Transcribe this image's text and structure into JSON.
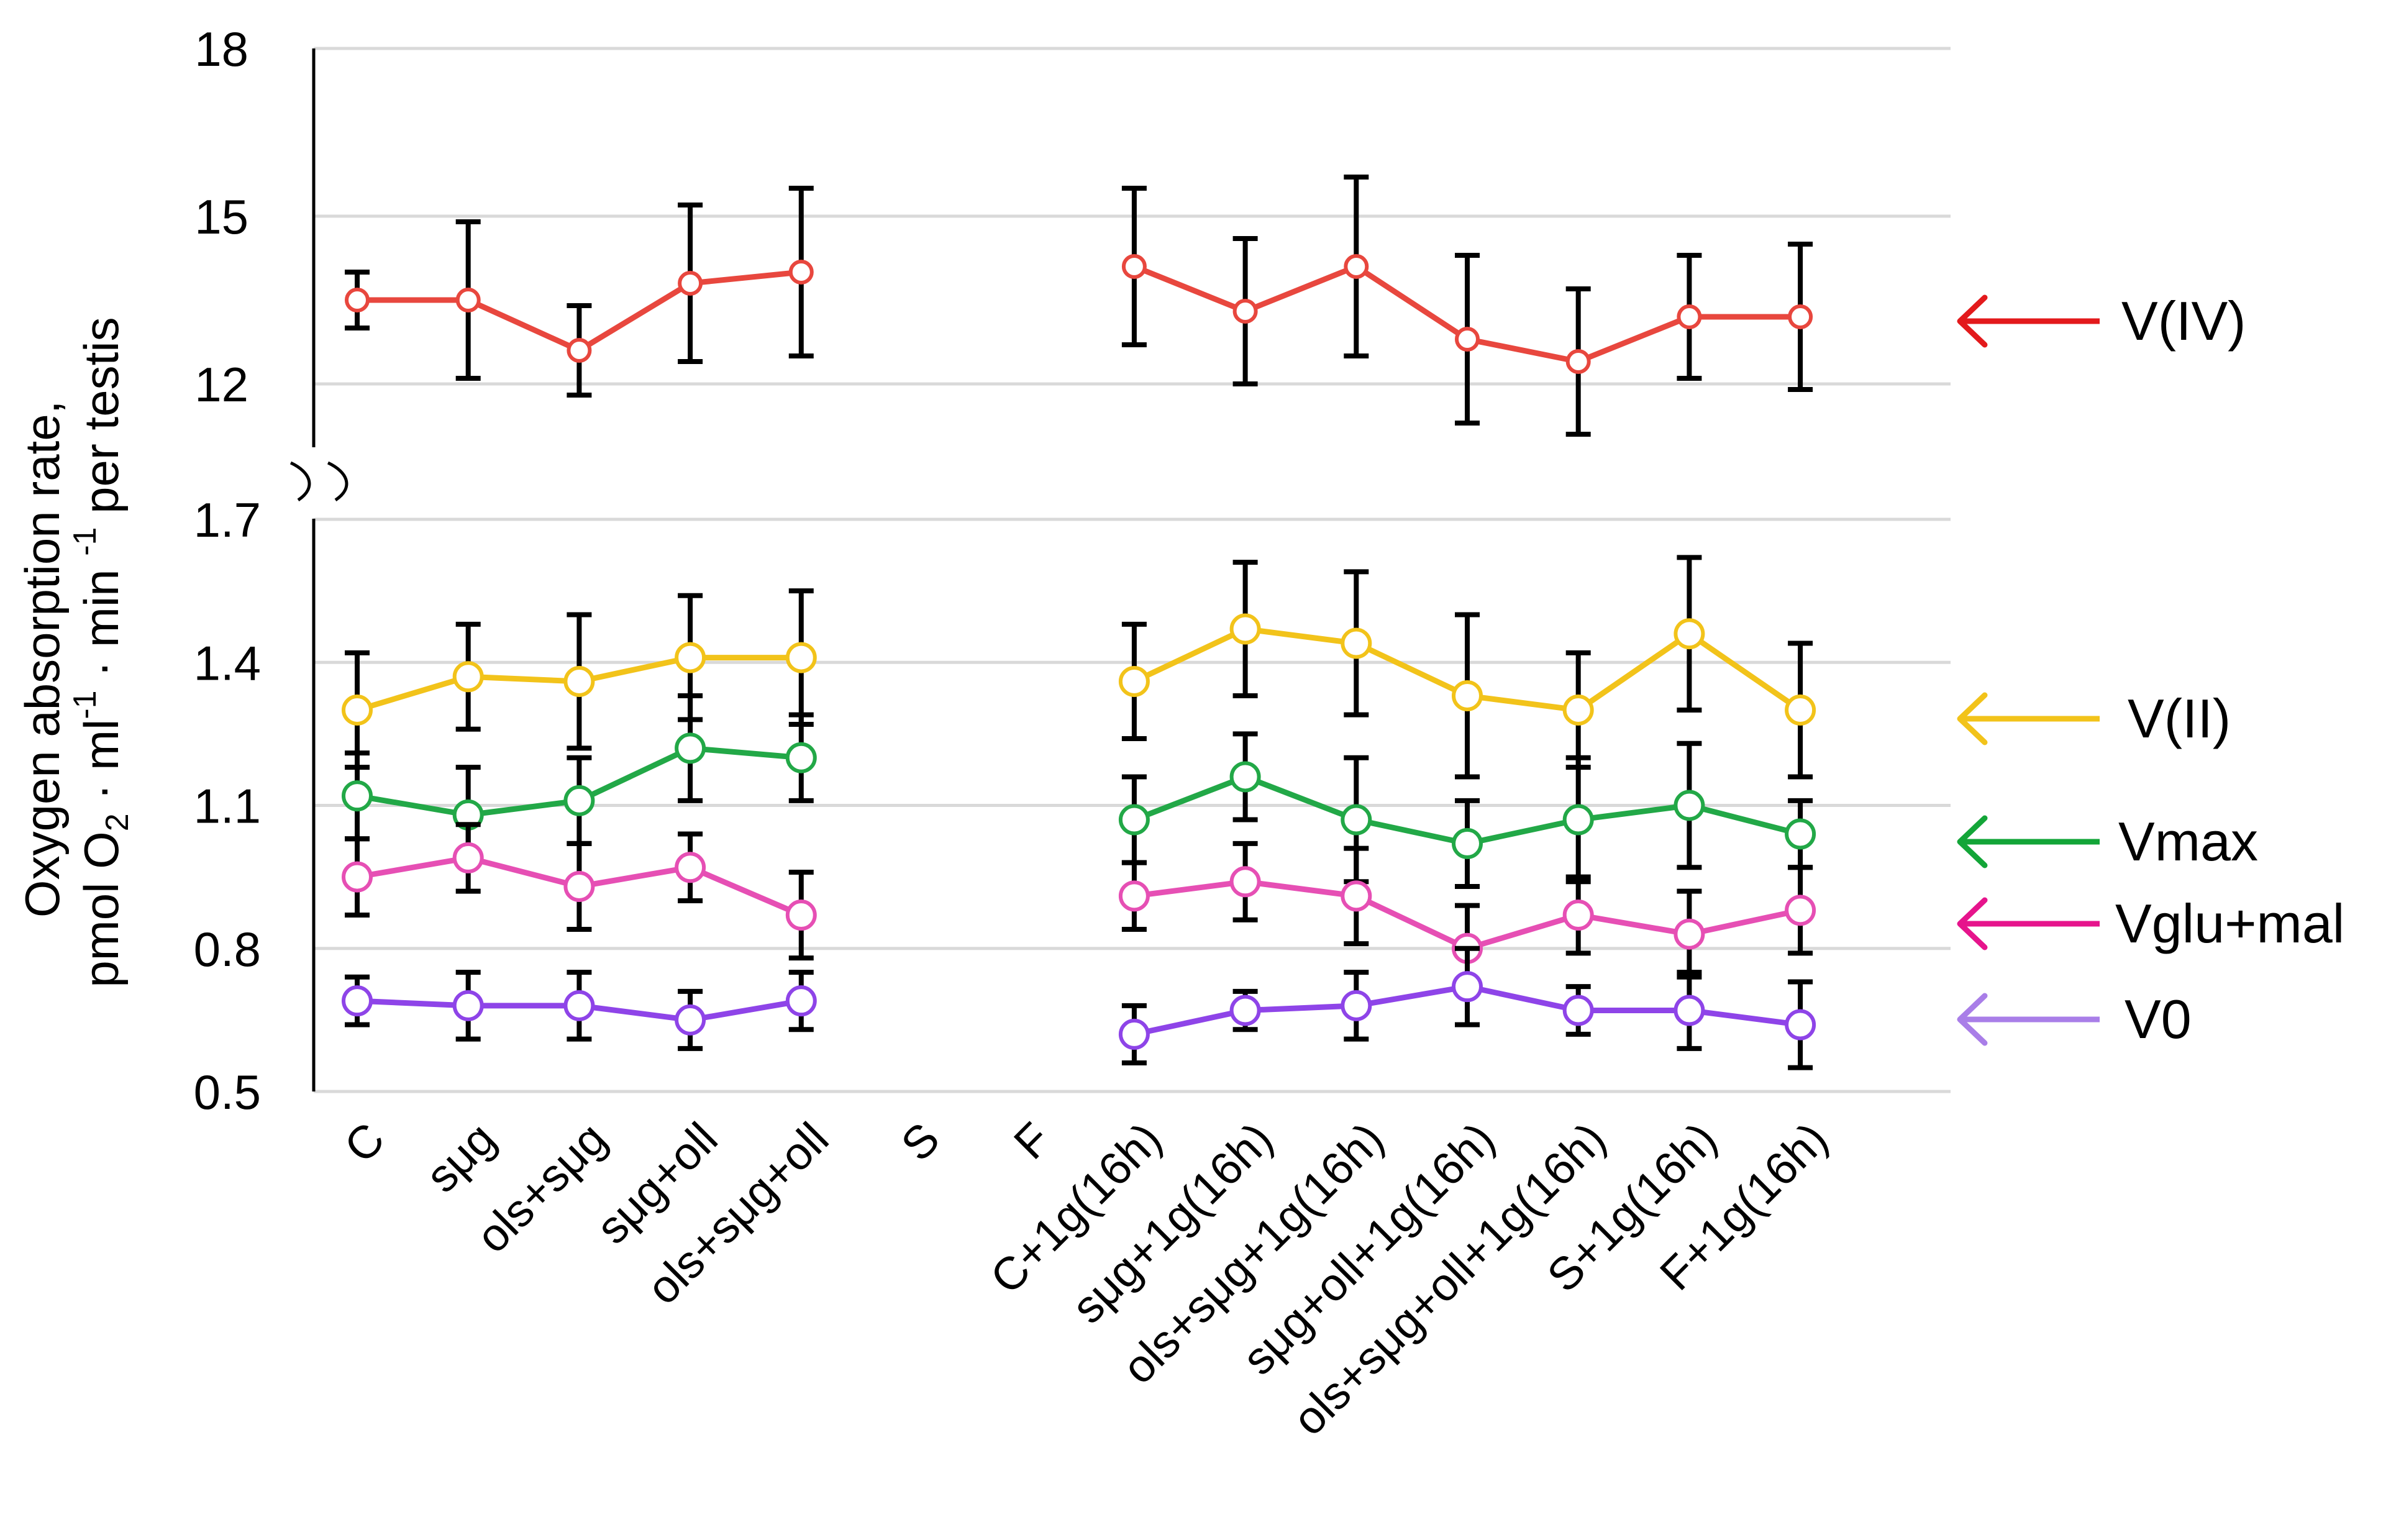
{
  "chart_data": {
    "type": "line",
    "title": "",
    "ylabel_line1": "Oxygen absorption rate,",
    "ylabel_line2": {
      "t1": "pmol O",
      "sub": "2",
      "t2": " · ml",
      "sup1": "-1",
      "t3": " · min ",
      "sup2": "-1",
      "t4": " per testis"
    },
    "categories": [
      "C",
      "sμg",
      "ols+sμg",
      "sμg+oll",
      "ols+sμg+oll",
      "S",
      "F",
      "C+1g(16h)",
      "sμg+1g(16h)",
      "ols+sμg+1g(16h)",
      "sμg+oll+1g(16h)",
      "ols+sμg+oll+1g(16h)",
      "S+1g(16h)",
      "F+1g(16h)"
    ],
    "upper_axis": {
      "ylim": [
        10.2,
        18
      ],
      "ticks": [
        "12",
        "15",
        "18"
      ],
      "tick_values": [
        12,
        15,
        18
      ]
    },
    "lower_axis": {
      "ylim": [
        0.5,
        1.7
      ],
      "ticks": [
        "0.5",
        "0.8",
        "1.1",
        "1.4",
        "1.7"
      ],
      "tick_values": [
        0.5,
        0.8,
        1.1,
        1.4,
        1.7
      ]
    },
    "series": [
      {
        "name": "V(IV)",
        "axis": "upper",
        "color": "#e8473e",
        "arrow_color": "#e31a1c",
        "values": [
          13.5,
          13.5,
          12.6,
          13.8,
          14.0,
          null,
          null,
          14.1,
          13.3,
          14.1,
          12.8,
          12.4,
          13.2,
          13.2
        ],
        "errors": [
          0.5,
          1.4,
          0.8,
          1.4,
          1.5,
          null,
          null,
          1.4,
          1.3,
          1.6,
          1.5,
          1.3,
          1.1,
          1.3
        ]
      },
      {
        "name": "V(II)",
        "axis": "lower",
        "color": "#f2c31a",
        "arrow_color": "#f2c31a",
        "values": [
          1.3,
          1.37,
          1.36,
          1.41,
          1.41,
          null,
          null,
          1.36,
          1.47,
          1.44,
          1.33,
          1.3,
          1.46,
          1.3
        ],
        "errors": [
          0.12,
          0.11,
          0.14,
          0.13,
          0.14,
          null,
          null,
          0.12,
          0.14,
          0.15,
          0.17,
          0.12,
          0.16,
          0.14
        ]
      },
      {
        "name": "Vmax",
        "axis": "lower",
        "color": "#22a847",
        "arrow_color": "#13a538",
        "values": [
          1.12,
          1.08,
          1.11,
          1.22,
          1.2,
          null,
          null,
          1.07,
          1.16,
          1.07,
          1.02,
          1.07,
          1.1,
          1.04
        ],
        "errors": [
          0.09,
          0.1,
          0.09,
          0.11,
          0.09,
          null,
          null,
          0.09,
          0.09,
          0.13,
          0.09,
          0.13,
          0.13,
          0.07
        ]
      },
      {
        "name": "Vglu+mal",
        "axis": "lower",
        "color": "#e64fb4",
        "arrow_color": "#e6148c",
        "values": [
          0.95,
          0.99,
          0.93,
          0.97,
          0.87,
          null,
          null,
          0.91,
          0.94,
          0.91,
          0.8,
          0.87,
          0.83,
          0.88
        ],
        "errors": [
          0.08,
          0.07,
          0.09,
          0.07,
          0.09,
          null,
          null,
          0.07,
          0.08,
          0.1,
          0.09,
          0.08,
          0.09,
          0.09
        ]
      },
      {
        "name": "V0",
        "axis": "lower",
        "color": "#8e44e8",
        "arrow_color": "#a97ee8",
        "values": [
          0.69,
          0.68,
          0.68,
          0.65,
          0.69,
          null,
          null,
          0.62,
          0.67,
          0.68,
          0.72,
          0.67,
          0.67,
          0.64
        ],
        "errors": [
          0.05,
          0.07,
          0.07,
          0.06,
          0.06,
          null,
          null,
          0.06,
          0.04,
          0.07,
          0.08,
          0.05,
          0.08,
          0.09
        ]
      }
    ],
    "legend_position": "right",
    "grid": true
  }
}
